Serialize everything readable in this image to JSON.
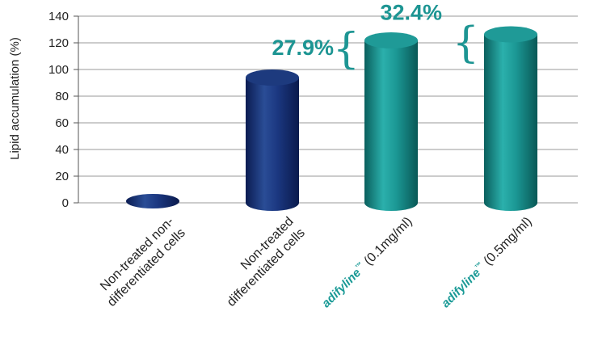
{
  "colors": {
    "navy": "#1d3a7e",
    "navy_dark": "#0c1f55",
    "teal": "#1f9a97",
    "teal_dark": "#0b6462",
    "accent_text": "#1d9593",
    "grid": "#9a9a9a"
  },
  "chart_data": {
    "type": "bar",
    "ylabel": "Lipid accumulation (%)",
    "ylim": [
      0,
      140
    ],
    "yticks": [
      0,
      20,
      40,
      60,
      80,
      100,
      120,
      140
    ],
    "categories": [
      {
        "lines": [
          "Non-treated non-",
          "differentiated cells"
        ],
        "brand": "",
        "suffix": "",
        "color": "navy"
      },
      {
        "lines": [
          "Non-treated",
          "differentiated cells"
        ],
        "brand": "",
        "suffix": "",
        "color": "navy"
      },
      {
        "lines": [],
        "brand": "adifyline",
        "tm": "™",
        "suffix": "  (0.1mg/ml)",
        "color": "teal"
      },
      {
        "lines": [],
        "brand": "adifyline",
        "tm": "™",
        "suffix": "  (0.5mg/ml)",
        "color": "teal"
      }
    ],
    "values": [
      2,
      100,
      127.9,
      132.4
    ],
    "annotations": [
      {
        "bar": 2,
        "text": "27.9%"
      },
      {
        "bar": 3,
        "text": "32.4%"
      }
    ],
    "grid": true
  }
}
